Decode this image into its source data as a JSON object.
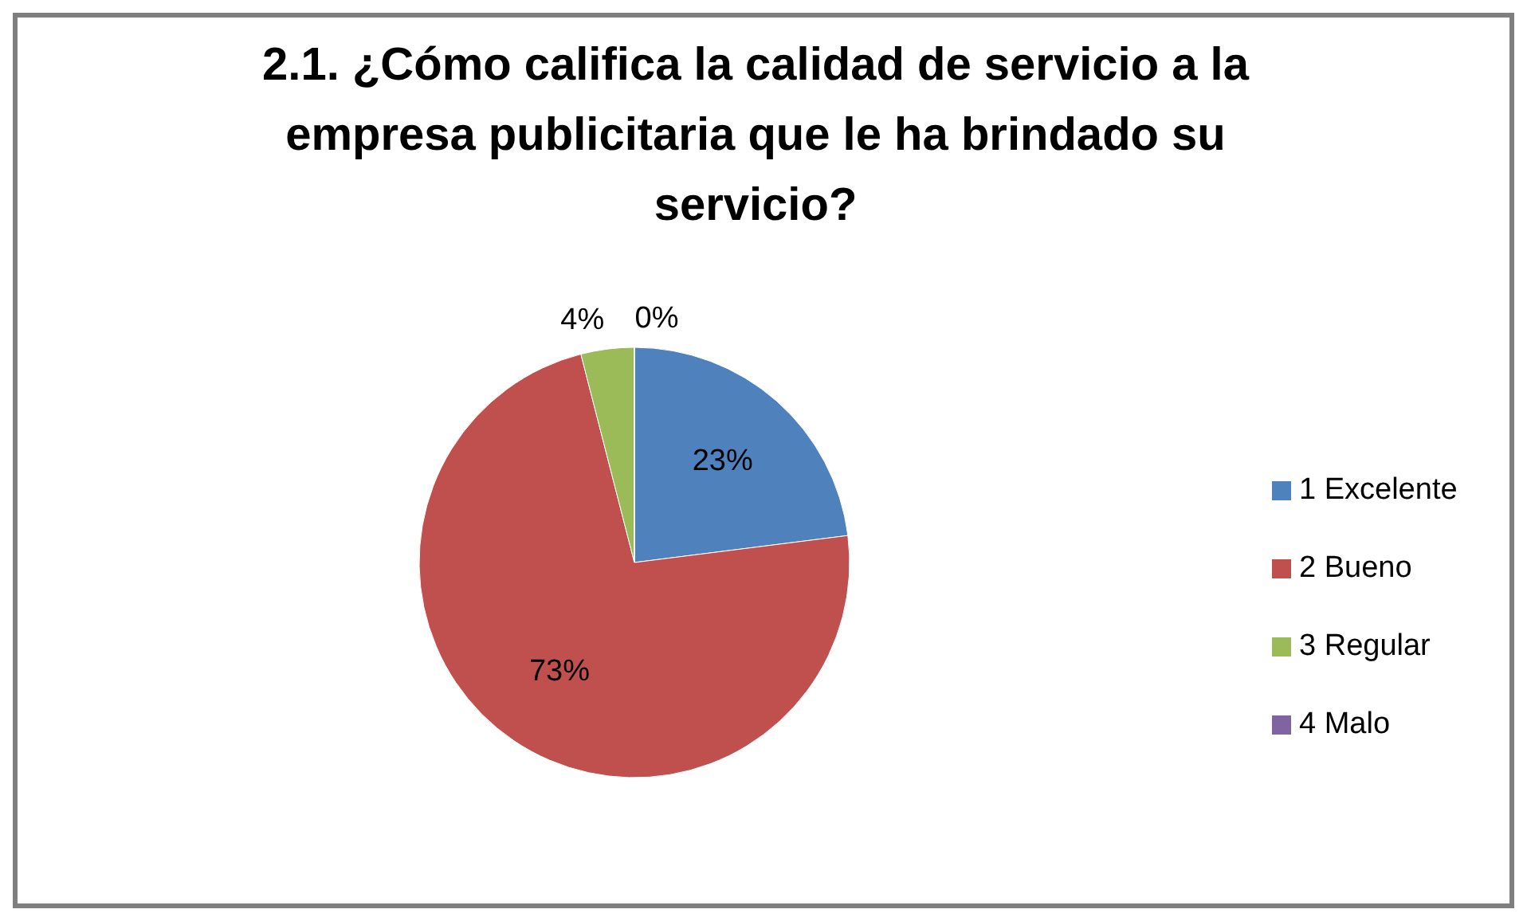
{
  "chart_data": {
    "type": "pie",
    "title": "2.1. ¿Cómo califica la calidad de servicio a la empresa publicitaria que le ha brindado su servicio?",
    "categories": [
      "1 Excelente",
      "2 Bueno",
      "3 Regular",
      "4 Malo"
    ],
    "values": [
      23,
      73,
      4,
      0
    ],
    "colors": [
      "#4f81bd",
      "#c0504d",
      "#9bbb59",
      "#8064a2"
    ],
    "value_labels": [
      "23%",
      "73%",
      "4%",
      "0%"
    ],
    "legend": "right"
  }
}
